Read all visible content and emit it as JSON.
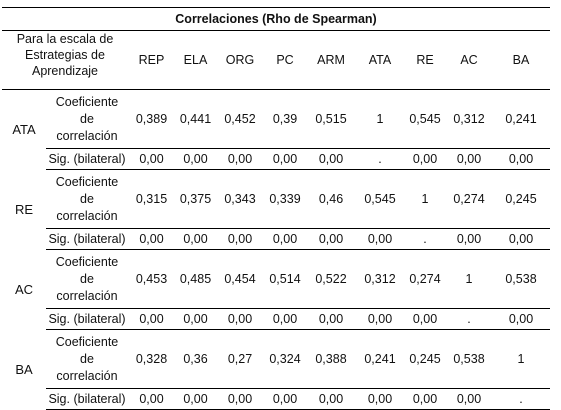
{
  "table": {
    "title": "Correlaciones (Rho de Spearman)",
    "scale_header": [
      "Para la escala de",
      "Estrategias de",
      "Aprendizaje"
    ],
    "columns": [
      "REP",
      "ELA",
      "ORG",
      "PC",
      "ARM",
      "ATA",
      "RE",
      "AC",
      "BA"
    ],
    "coef_label": [
      "Coeficiente",
      "de",
      "correlación"
    ],
    "sig_label": "Sig. (bilateral)",
    "groups": [
      {
        "name": "ATA",
        "coef": [
          "0,389",
          "0,441",
          "0,452",
          "0,39",
          "0,515",
          "1",
          "0,545",
          "0,312",
          "0,241"
        ],
        "sig": [
          "0,00",
          "0,00",
          "0,00",
          "0,00",
          "0,00",
          ".",
          "0,00",
          "0,00",
          "0,00"
        ]
      },
      {
        "name": "RE",
        "coef": [
          "0,315",
          "0,375",
          "0,343",
          "0,339",
          "0,46",
          "0,545",
          "1",
          "0,274",
          "0,245"
        ],
        "sig": [
          "0,00",
          "0,00",
          "0,00",
          "0,00",
          "0,00",
          "0,00",
          ".",
          "0,00",
          "0,00"
        ]
      },
      {
        "name": "AC",
        "coef": [
          "0,453",
          "0,485",
          "0,454",
          "0,514",
          "0,522",
          "0,312",
          "0,274",
          "1",
          "0,538"
        ],
        "sig": [
          "0,00",
          "0,00",
          "0,00",
          "0,00",
          "0,00",
          "0,00",
          "0,00",
          ".",
          "0,00"
        ]
      },
      {
        "name": "BA",
        "coef": [
          "0,328",
          "0,36",
          "0,27",
          "0,324",
          "0,388",
          "0,241",
          "0,245",
          "0,538",
          "1"
        ],
        "sig": [
          "0,00",
          "0,00",
          "0,00",
          "0,00",
          "0,00",
          "0,00",
          "0,00",
          "0,00",
          "."
        ]
      }
    ]
  }
}
